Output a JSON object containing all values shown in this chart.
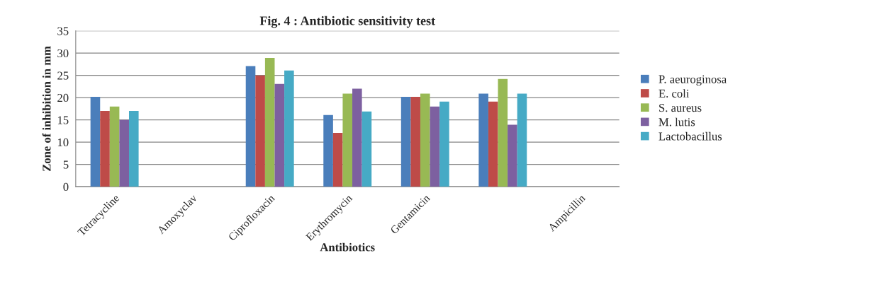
{
  "chart_data": {
    "type": "bar",
    "title": "Fig. 4 : Antibiotic sensitivity test",
    "xlabel": "Antibiotics",
    "ylabel": "Zone of inhibition in mm",
    "categories": [
      "Tetracycline",
      "Amoxyclav",
      "Ciprofloxacin",
      "Erythromycin",
      "Gentamicin",
      null,
      "Ampicillin"
    ],
    "series": [
      {
        "name": "P. aeuroginosa",
        "color": "#4a7ebb",
        "values": [
          20.2,
          null,
          27.1,
          16.1,
          20.2,
          20.9,
          null
        ]
      },
      {
        "name": "E. coli",
        "color": "#be4b48",
        "values": [
          17,
          null,
          25,
          12.1,
          20.2,
          19.1,
          null
        ]
      },
      {
        "name": "S. aureus",
        "color": "#98b954",
        "values": [
          18,
          null,
          28.9,
          20.9,
          20.9,
          24.2,
          null
        ]
      },
      {
        "name": "M. lutis",
        "color": "#7d60a0",
        "values": [
          15,
          null,
          23.1,
          22,
          18,
          13.9,
          null
        ]
      },
      {
        "name": "Lactobacillus",
        "color": "#46aac5",
        "values": [
          17,
          null,
          26.1,
          16.9,
          19.1,
          20.9,
          null
        ]
      }
    ],
    "ylim": [
      0,
      35
    ],
    "yticks": [
      0,
      5,
      10,
      15,
      20,
      25,
      30,
      35
    ],
    "grid": "y",
    "legend": "right"
  }
}
